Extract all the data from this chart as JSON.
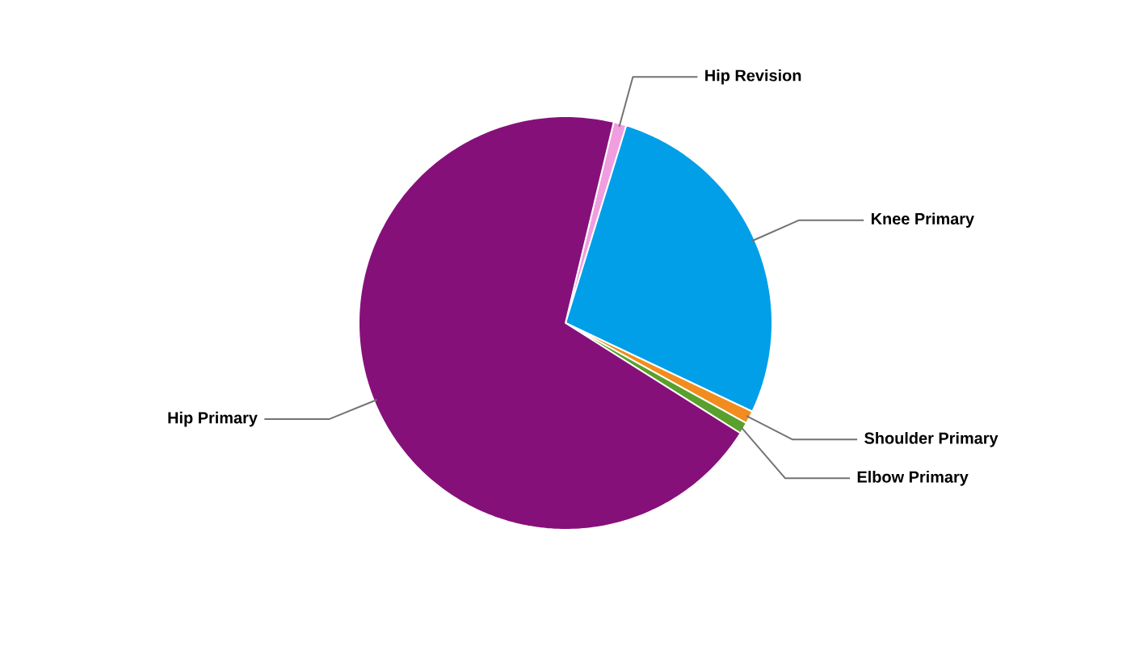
{
  "chart_data": {
    "type": "pie",
    "categories": [
      "Hip Revision",
      "Knee Primary",
      "Shoulder Primary",
      "Elbow Primary",
      "Hip Primary"
    ],
    "values": [
      1.0,
      27.3,
      1.0,
      0.9,
      69.8
    ],
    "colors": [
      "#f09ee0",
      "#009fe8",
      "#f28c1e",
      "#5aa02c",
      "#86107a"
    ]
  }
}
